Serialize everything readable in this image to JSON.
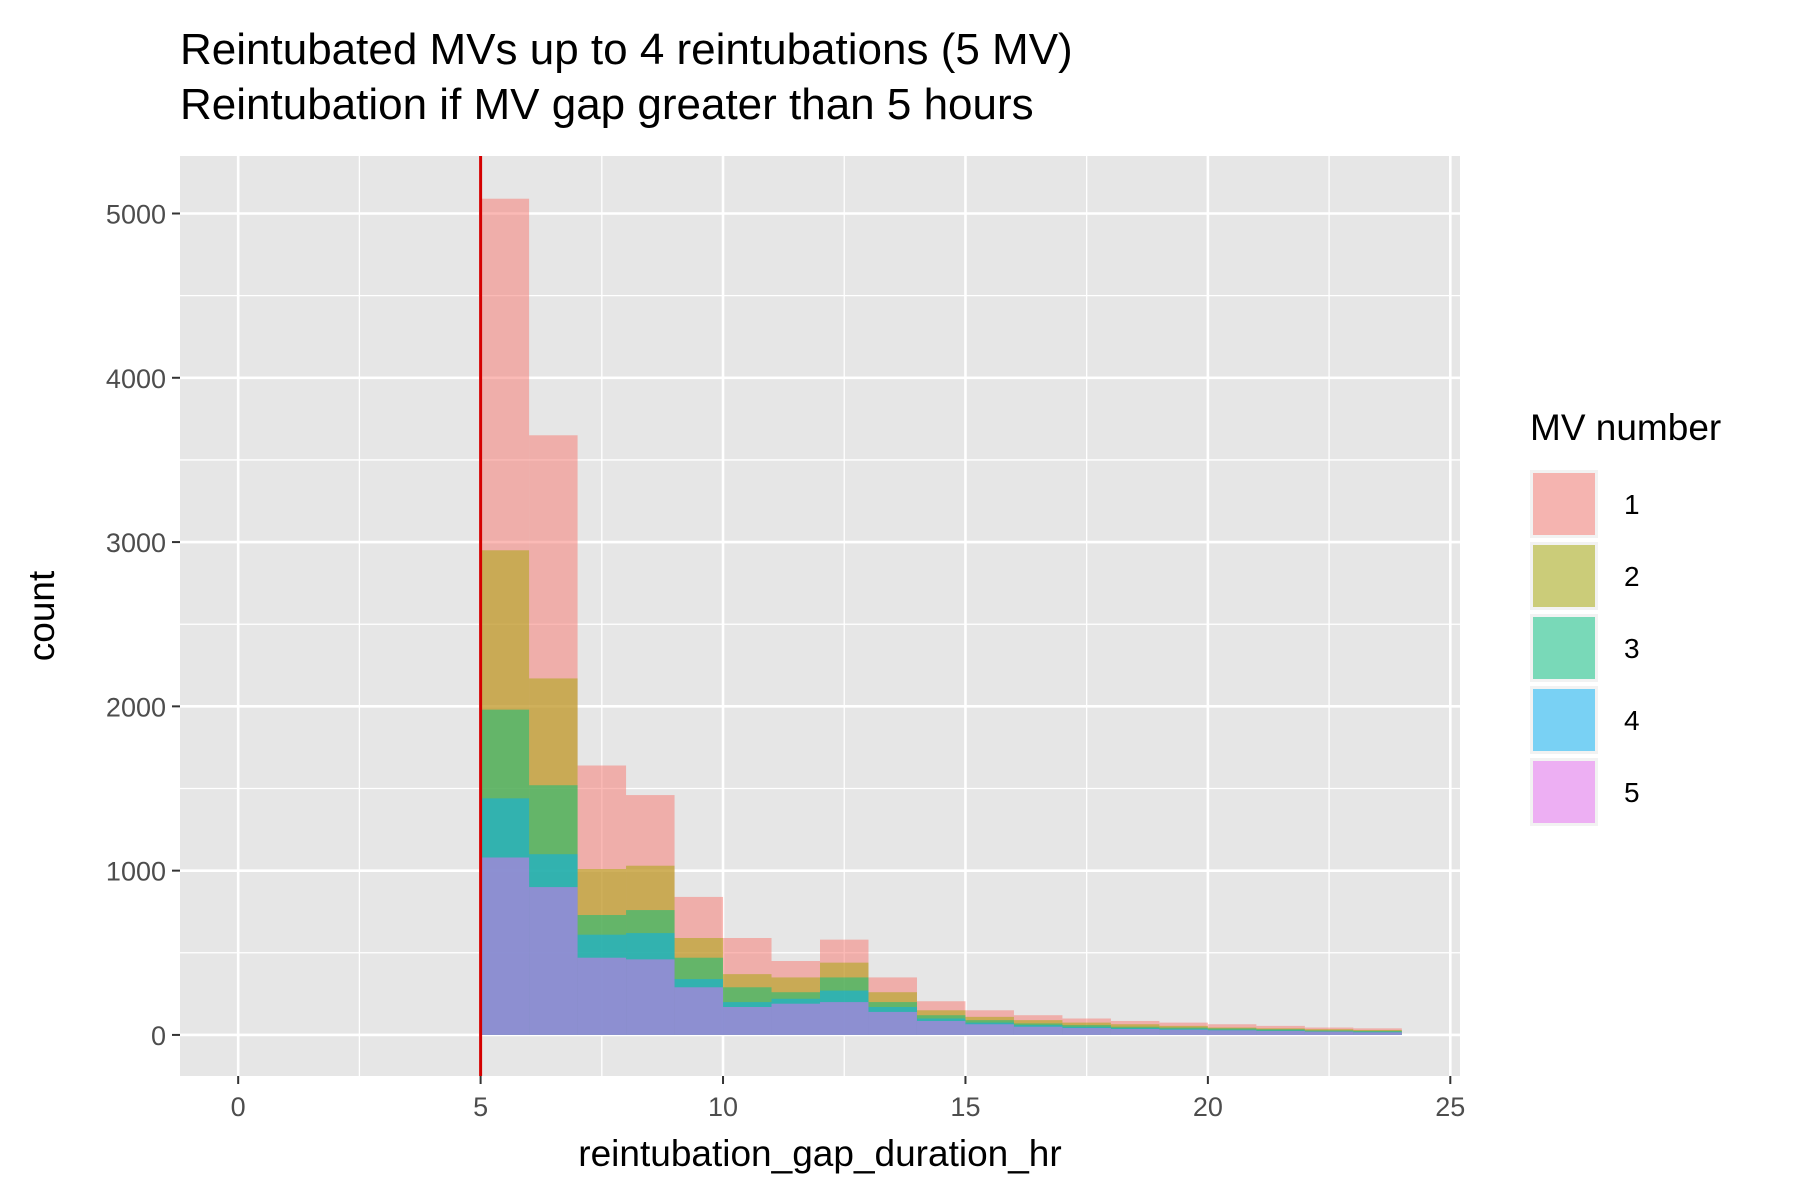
{
  "chart_data": {
    "type": "bar",
    "subtype": "overlaid-histogram",
    "title": "Reintubated MVs up to 4 reintubations (5 MV)",
    "subtitle": "Reintubation if MV gap greater than 5 hours",
    "xlabel": "reintubation_gap_duration_hr",
    "ylabel": "count",
    "xlim": [
      -1.2,
      25.2
    ],
    "ylim": [
      -250,
      5350
    ],
    "x_ticks": [
      0,
      5,
      10,
      15,
      20,
      25
    ],
    "y_ticks": [
      0,
      1000,
      2000,
      3000,
      4000,
      5000
    ],
    "grid": true,
    "bin_width": 1,
    "bin_edges": [
      5,
      6,
      7,
      8,
      9,
      10,
      11,
      12,
      13,
      14,
      15,
      16,
      17,
      18,
      19,
      20,
      21,
      22,
      23,
      24
    ],
    "vertical_line": {
      "x": 5,
      "color": "#d40000"
    },
    "bar_opacity": 0.5,
    "legend": {
      "title": "MV number",
      "position": "right"
    },
    "series": [
      {
        "name": "1",
        "color": "#F8766D",
        "values": [
          5090,
          3650,
          1640,
          1460,
          840,
          590,
          450,
          580,
          350,
          205,
          150,
          120,
          100,
          85,
          75,
          65,
          55,
          45,
          40
        ]
      },
      {
        "name": "2",
        "color": "#A3A500",
        "values": [
          2950,
          2170,
          1010,
          1030,
          590,
          370,
          350,
          440,
          260,
          150,
          110,
          90,
          75,
          65,
          55,
          45,
          40,
          35,
          30
        ]
      },
      {
        "name": "3",
        "color": "#00BF7D",
        "values": [
          1980,
          1520,
          730,
          760,
          470,
          290,
          260,
          350,
          200,
          120,
          90,
          70,
          60,
          50,
          45,
          40,
          35,
          28,
          25
        ]
      },
      {
        "name": "4",
        "color": "#00B0F6",
        "values": [
          1440,
          1100,
          610,
          620,
          340,
          200,
          220,
          270,
          170,
          100,
          75,
          60,
          50,
          42,
          38,
          32,
          28,
          22,
          20
        ]
      },
      {
        "name": "5",
        "color": "#E76BF3",
        "values": [
          1080,
          900,
          470,
          460,
          290,
          170,
          190,
          200,
          140,
          85,
          65,
          50,
          42,
          36,
          32,
          28,
          24,
          20,
          16
        ]
      }
    ]
  }
}
